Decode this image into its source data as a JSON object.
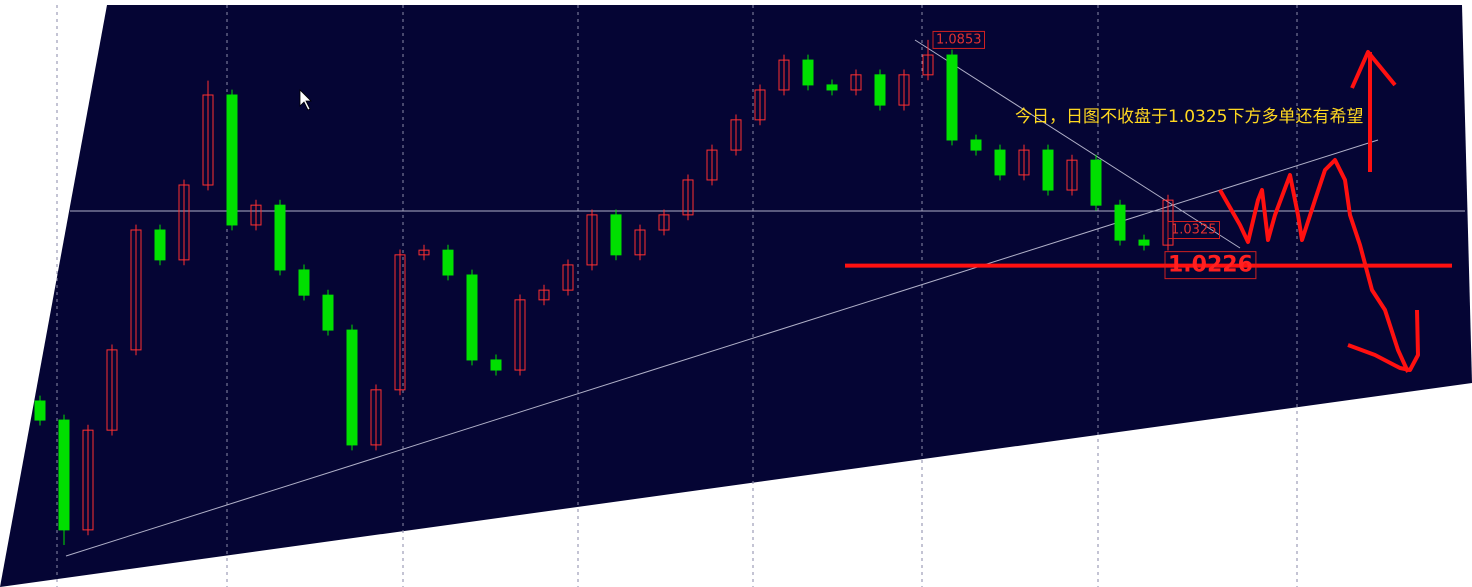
{
  "chart_data": {
    "type": "candlestick",
    "open": [
      0.985,
      0.9797,
      0.9492,
      0.9769,
      0.9992,
      1.0325,
      1.0242,
      1.045,
      1.07,
      1.0339,
      1.0394,
      1.0214,
      1.0144,
      1.0047,
      0.9728,
      0.9881,
      1.0256,
      1.0269,
      1.02,
      0.9964,
      0.9936,
      1.0131,
      1.0158,
      1.0228,
      1.0367,
      1.0256,
      1.0325,
      1.0367,
      1.0464,
      1.0547,
      1.0631,
      1.0714,
      1.0797,
      1.0728,
      1.0714,
      1.0756,
      1.0672,
      1.0756,
      1.0811,
      1.0575,
      1.0547,
      1.0478,
      1.0547,
      1.0436,
      1.0519,
      1.0394,
      1.0297,
      1.0283
    ],
    "high": [
      0.9865,
      0.9812,
      0.9784,
      1.0007,
      1.034,
      1.034,
      1.0465,
      1.074,
      1.0715,
      1.0409,
      1.0409,
      1.0229,
      1.0159,
      1.0062,
      0.9896,
      1.0271,
      1.0284,
      1.0284,
      1.0215,
      0.9979,
      1.0146,
      1.0173,
      1.0243,
      1.0382,
      1.0382,
      1.034,
      1.0382,
      1.0479,
      1.0562,
      1.0646,
      1.0729,
      1.0812,
      1.0812,
      1.0743,
      1.0771,
      1.0771,
      1.0771,
      1.0853,
      1.0826,
      1.059,
      1.0562,
      1.0562,
      1.0562,
      1.0534,
      1.0534,
      1.0409,
      1.0312,
      1.0423
    ],
    "low": [
      0.9782,
      0.945,
      0.9477,
      0.9754,
      0.9977,
      1.0227,
      1.0227,
      1.0435,
      1.0324,
      1.0324,
      1.0199,
      1.0129,
      1.0032,
      0.9713,
      0.9713,
      0.9866,
      1.0241,
      1.0185,
      0.9949,
      0.9921,
      0.9921,
      1.0116,
      1.0143,
      1.0213,
      1.0241,
      1.0241,
      1.031,
      1.0352,
      1.0449,
      1.0532,
      1.0616,
      1.0699,
      1.0713,
      1.0699,
      1.0699,
      1.0657,
      1.0657,
      1.0741,
      1.056,
      1.0532,
      1.0463,
      1.0463,
      1.0421,
      1.0421,
      1.0379,
      1.0282,
      1.0268,
      1.0268
    ],
    "close": [
      0.9797,
      0.9492,
      0.9769,
      0.9992,
      1.0325,
      1.0242,
      1.045,
      1.07,
      1.0339,
      1.0394,
      1.0214,
      1.0144,
      1.0047,
      0.9728,
      0.9881,
      1.0256,
      1.0269,
      1.02,
      0.9964,
      0.9936,
      1.0131,
      1.0158,
      1.0228,
      1.0367,
      1.0256,
      1.0325,
      1.0367,
      1.0464,
      1.0547,
      1.0631,
      1.0714,
      1.0797,
      1.0728,
      1.0714,
      1.0756,
      1.0672,
      1.0756,
      1.0811,
      1.0575,
      1.0547,
      1.0478,
      1.0547,
      1.0436,
      1.0519,
      1.0394,
      1.0297,
      1.0283,
      1.0408
    ],
    "up_color": "#ff3030",
    "down_color": "#00e000",
    "ylim": [
      0.94,
      1.095
    ],
    "price_labels": [
      1.0853,
      1.0325,
      1.0226
    ],
    "support_level": 1.0226,
    "annotation": "今日，日图不收盘于1.0325下方多单还有希望"
  }
}
